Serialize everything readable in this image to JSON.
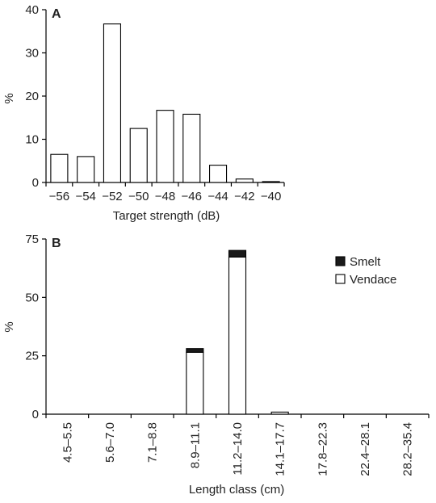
{
  "chart_data": [
    {
      "panel": "A",
      "type": "bar",
      "categories": [
        "−56",
        "−54",
        "−52",
        "−50",
        "−48",
        "−46",
        "−44",
        "−42",
        "−40"
      ],
      "values": [
        6.5,
        6,
        36.7,
        12.5,
        16.7,
        15.8,
        4,
        0.8,
        0.2
      ],
      "xlabel": "Target strength (dB)",
      "ylabel": "%",
      "ylim": [
        0,
        40
      ],
      "yticks": [
        "0",
        "10",
        "20",
        "30",
        "40"
      ],
      "grid": false,
      "colors": {
        "bar_fill": "#ffffff",
        "bar_stroke": "#000000"
      }
    },
    {
      "panel": "B",
      "type": "bar",
      "stacked": true,
      "categories": [
        "4.5–5.5",
        "5.6–7.0",
        "7.1–8.8",
        "8.9–11.1",
        "11.2–14.0",
        "14.1–17.7",
        "17.8–22.3",
        "22.4–28.1",
        "28.2–35.4"
      ],
      "series": [
        {
          "name": "Vendace",
          "values": [
            0,
            0,
            0,
            26.5,
            67.3,
            0.9,
            0,
            0,
            0
          ],
          "color": "#ffffff"
        },
        {
          "name": "Smelt",
          "values": [
            0,
            0,
            0,
            1.6,
            2.8,
            0,
            0,
            0,
            0
          ],
          "color": "#1a1a1a"
        }
      ],
      "legend": [
        "Smelt",
        "Vendace"
      ],
      "legend_placement": "top-right",
      "xlabel": "Length class (cm)",
      "ylabel": "%",
      "ylim": [
        0,
        75
      ],
      "yticks": [
        "0",
        "25",
        "50",
        "75"
      ],
      "grid": false
    }
  ]
}
